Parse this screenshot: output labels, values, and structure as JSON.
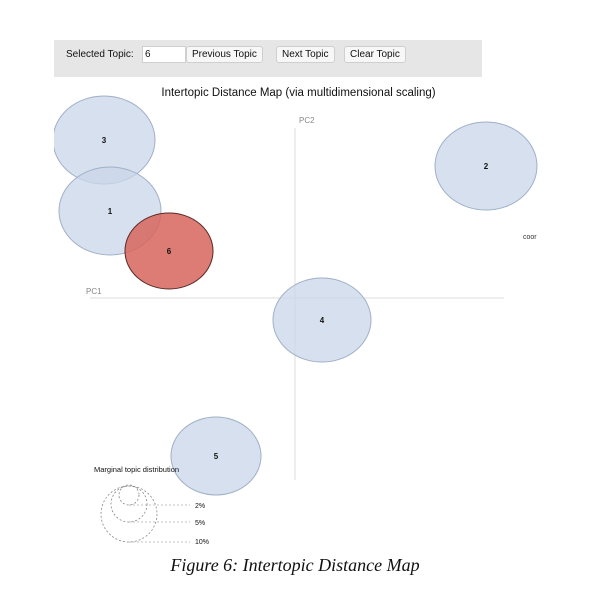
{
  "toolbar": {
    "selected_label": "Selected Topic:",
    "selected_value": "6",
    "prev_label": "Previous Topic",
    "next_label": "Next Topic",
    "clear_label": "Clear Topic"
  },
  "map": {
    "title": "Intertopic Distance Map (via multidimensional scaling)",
    "pc1_label": "PC1",
    "pc2_label": "PC2",
    "side_label": "coor",
    "colors": {
      "topic_fill": "#c9d6e8",
      "topic_stroke": "#9fb0c8",
      "selected_fill": "#d7655c",
      "selected_stroke": "#5a2a28",
      "axis": "#dddddd"
    },
    "topics": [
      {
        "id": "3",
        "selected": false
      },
      {
        "id": "2",
        "selected": false
      },
      {
        "id": "1",
        "selected": false
      },
      {
        "id": "6",
        "selected": true
      },
      {
        "id": "4",
        "selected": false
      },
      {
        "id": "5",
        "selected": false
      }
    ]
  },
  "legend": {
    "title": "Marginal topic distribution",
    "levels": [
      "2%",
      "5%",
      "10%"
    ]
  },
  "caption": "Figure 6: Intertopic Distance Map"
}
